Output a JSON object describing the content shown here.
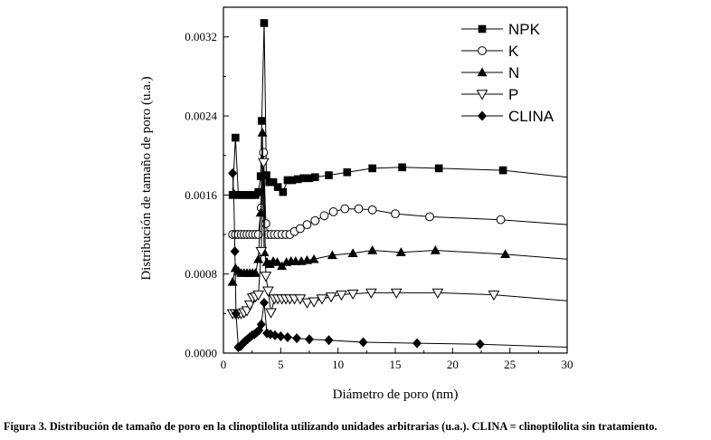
{
  "caption": "Figura 3. Distribución de tamaño de poro en la clinoptilolita utilizando unidades arbitrarias (u.a.). CLINA = clinoptilolita sin tratamiento.",
  "chart_data": {
    "type": "line",
    "title": "",
    "xlabel": "Diámetro de poro (nm)",
    "ylabel": "Distribución de tamaño de poro (u.a.)",
    "xlim": [
      0,
      30
    ],
    "ylim": [
      0,
      0.0035
    ],
    "xticks": [
      0,
      5,
      10,
      15,
      20,
      25,
      30
    ],
    "xtick_labels": [
      "0",
      "5",
      "10",
      "15",
      "20",
      "25",
      "30"
    ],
    "yticks": [
      0.0,
      0.0008,
      0.0016,
      0.0024,
      0.0032
    ],
    "ytick_labels": [
      "0.0000",
      "0.0008",
      "0.0016",
      "0.0024",
      "0.0032"
    ],
    "legend_position": "top-right",
    "series": [
      {
        "name": "NPK",
        "marker": "square",
        "x": [
          0.8,
          1.05,
          1.3,
          1.55,
          1.8,
          2.05,
          2.3,
          2.55,
          2.8,
          3.05,
          3.25,
          3.35,
          3.55,
          3.75,
          4.0,
          4.35,
          4.75,
          5.2,
          5.6,
          6.0,
          6.5,
          7.0,
          7.5,
          8.0,
          9.2,
          10.8,
          13.0,
          15.6,
          18.8,
          24.4,
          30.0
        ],
        "y": [
          0.0016,
          0.00218,
          0.0016,
          0.0016,
          0.0016,
          0.0016,
          0.0016,
          0.0016,
          0.0016,
          0.00163,
          0.00179,
          0.00235,
          0.00334,
          0.0018,
          0.00173,
          0.00173,
          0.00168,
          0.00163,
          0.00175,
          0.00175,
          0.00176,
          0.00177,
          0.00177,
          0.00178,
          0.0018,
          0.00183,
          0.00187,
          0.00188,
          0.00187,
          0.00185,
          0.00178
        ]
      },
      {
        "name": "K",
        "marker": "circle-open",
        "x": [
          0.8,
          1.05,
          1.3,
          1.55,
          1.8,
          2.05,
          2.3,
          2.55,
          2.8,
          3.05,
          3.3,
          3.5,
          3.7,
          3.9,
          4.15,
          4.45,
          4.75,
          5.1,
          5.45,
          5.8,
          6.2,
          6.7,
          7.3,
          8.0,
          8.8,
          9.6,
          10.6,
          11.8,
          13.0,
          15.0,
          18.0,
          24.2,
          30.0
        ],
        "y": [
          0.0012,
          0.0012,
          0.0012,
          0.0012,
          0.0012,
          0.0012,
          0.0012,
          0.0012,
          0.0012,
          0.0012,
          0.00147,
          0.00203,
          0.00131,
          0.0012,
          0.0012,
          0.0012,
          0.0012,
          0.0012,
          0.0012,
          0.0012,
          0.00123,
          0.00126,
          0.0013,
          0.00134,
          0.00139,
          0.00143,
          0.00146,
          0.00146,
          0.00145,
          0.00141,
          0.00138,
          0.00135,
          0.0013
        ]
      },
      {
        "name": "N",
        "marker": "triangle-up",
        "x": [
          0.8,
          1.05,
          1.3,
          1.55,
          1.8,
          2.05,
          2.3,
          2.55,
          2.8,
          3.05,
          3.25,
          3.4,
          3.55,
          3.8,
          4.05,
          4.35,
          4.7,
          5.1,
          5.5,
          5.9,
          6.3,
          6.8,
          7.3,
          7.9,
          9.5,
          11.3,
          13.0,
          15.5,
          18.5,
          24.6,
          30.0
        ],
        "y": [
          0.00072,
          0.00086,
          0.00083,
          0.00081,
          0.00081,
          0.00081,
          0.00081,
          0.00081,
          0.00081,
          0.00095,
          0.00142,
          0.00223,
          0.00102,
          0.00092,
          0.0009,
          0.00093,
          0.00092,
          0.00088,
          0.00092,
          0.00093,
          0.00093,
          0.00093,
          0.00094,
          0.00095,
          0.00099,
          0.00101,
          0.00104,
          0.00102,
          0.00104,
          0.001,
          0.00095
        ]
      },
      {
        "name": "P",
        "marker": "triangle-down-open",
        "x": [
          0.8,
          1.05,
          1.3,
          1.55,
          1.8,
          2.05,
          2.3,
          2.55,
          2.8,
          3.05,
          3.3,
          3.5,
          3.7,
          3.9,
          4.15,
          4.45,
          4.75,
          5.1,
          5.45,
          5.8,
          6.2,
          6.7,
          7.3,
          7.9,
          8.6,
          9.4,
          10.3,
          11.3,
          12.9,
          15.1,
          18.7,
          23.6,
          30.0
        ],
        "y": [
          0.0004,
          0.0004,
          0.0004,
          0.0004,
          0.00041,
          0.00043,
          0.00049,
          0.00056,
          0.00057,
          0.00059,
          0.00103,
          0.00193,
          0.00078,
          0.00063,
          0.00041,
          0.00055,
          0.00055,
          0.00055,
          0.00055,
          0.00055,
          0.00055,
          0.00055,
          0.00051,
          0.00052,
          0.00055,
          0.00057,
          0.00059,
          0.0006,
          0.00061,
          0.00061,
          0.00061,
          0.00059,
          0.00053
        ]
      },
      {
        "name": "CLINA",
        "marker": "diamond",
        "x": [
          0.8,
          0.9,
          1.0,
          1.1,
          1.3,
          1.5,
          1.7,
          1.9,
          2.1,
          2.3,
          2.5,
          2.7,
          2.9,
          3.1,
          3.3,
          3.55,
          3.8,
          4.1,
          4.5,
          5.0,
          5.6,
          6.4,
          7.5,
          9.2,
          12.2,
          16.9,
          22.4,
          30.0
        ],
        "y": [
          0.00182,
          0.00161,
          0.00103,
          0.0004,
          6e-05,
          7e-05,
          0.0001,
          0.00012,
          0.00014,
          0.00016,
          0.00018,
          0.00019,
          0.00021,
          0.00023,
          0.00029,
          0.00051,
          0.0002,
          0.00019,
          0.00018,
          0.00017,
          0.00016,
          0.00015,
          0.00014,
          0.00013,
          0.00011,
          0.0001,
          9e-05,
          6e-05
        ]
      }
    ]
  }
}
